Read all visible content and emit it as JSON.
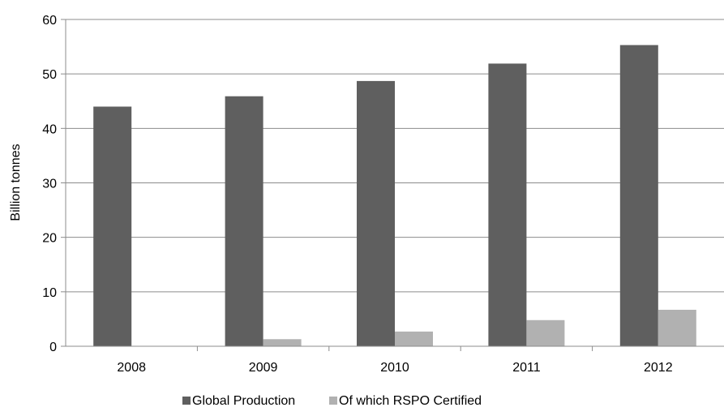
{
  "chart_data": {
    "type": "bar",
    "title": "",
    "xlabel": "",
    "ylabel": "Billion tonnes",
    "ylim": [
      0,
      60
    ],
    "yticks": [
      0,
      10,
      20,
      30,
      40,
      50,
      60
    ],
    "grid": true,
    "legend_position": "bottom",
    "categories": [
      "2008",
      "2009",
      "2010",
      "2011",
      "2012"
    ],
    "series": [
      {
        "name": "Global Production",
        "color": "#5f5f5f",
        "values": [
          44.0,
          45.9,
          48.7,
          51.9,
          55.3
        ]
      },
      {
        "name": "Of which RSPO Certified",
        "color": "#b1b1b1",
        "values": [
          0.0,
          1.3,
          2.7,
          4.8,
          6.7
        ]
      }
    ]
  }
}
